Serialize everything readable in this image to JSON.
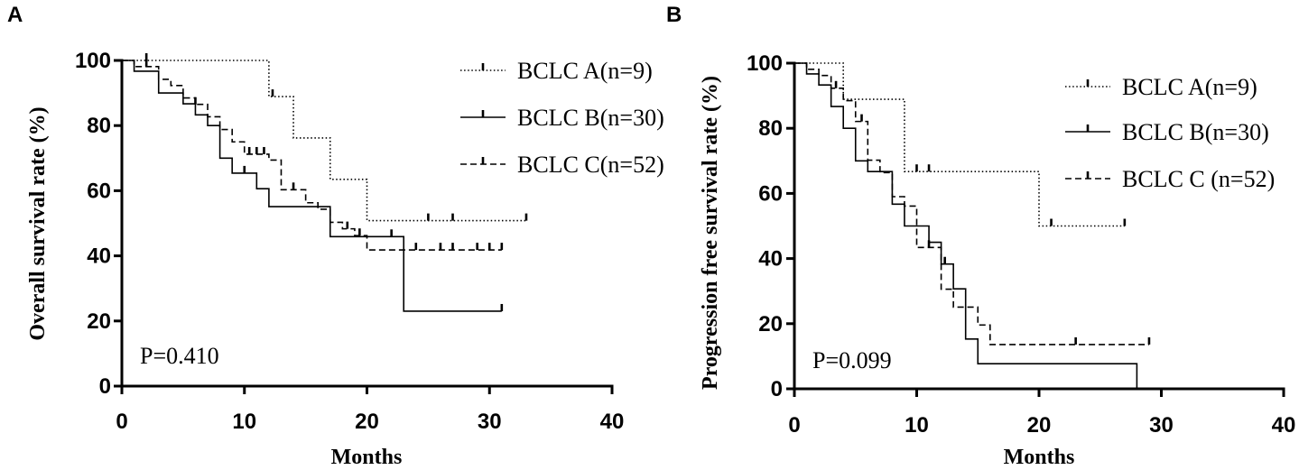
{
  "chart_data": [
    {
      "panel_label": "A",
      "type": "line",
      "xlabel": "Months",
      "ylabel": "Overall survival rate (%)",
      "xlim": [
        0,
        40
      ],
      "ylim": [
        0,
        100
      ],
      "x_ticks": [
        0,
        10,
        20,
        30,
        40
      ],
      "y_ticks": [
        0,
        20,
        40,
        60,
        80,
        100
      ],
      "grid": false,
      "legend_position": "top-right",
      "annotation": "P=0.410",
      "series": [
        {
          "name": "BCLC A(n=9)",
          "line_style": "dotted",
          "color": "#000000",
          "steps": [
            [
              0,
              100
            ],
            [
              12,
              88.9
            ],
            [
              14,
              76.2
            ],
            [
              17,
              63.5
            ],
            [
              20,
              50.8
            ]
          ],
          "end": 33,
          "censored_at": [
            2,
            12.3,
            25,
            27,
            33
          ]
        },
        {
          "name": "BCLC B(n=30)",
          "line_style": "solid",
          "color": "#000000",
          "steps": [
            [
              0,
              100
            ],
            [
              1,
              96.7
            ],
            [
              3,
              90
            ],
            [
              5,
              86.7
            ],
            [
              6,
              83.3
            ],
            [
              7,
              80
            ],
            [
              8,
              70
            ],
            [
              9,
              65.4
            ],
            [
              11,
              60.6
            ],
            [
              12,
              55.1
            ],
            [
              17,
              45.9
            ],
            [
              23,
              23
            ]
          ],
          "end": 31,
          "censored_at": [
            10,
            22,
            31
          ]
        },
        {
          "name": "BCLC C(n=52)",
          "line_style": "dashed",
          "color": "#000000",
          "steps": [
            [
              0,
              100
            ],
            [
              1,
              98.1
            ],
            [
              3,
              94.2
            ],
            [
              4,
              92.3
            ],
            [
              5,
              88.5
            ],
            [
              6,
              86.5
            ],
            [
              7,
              82.7
            ],
            [
              8,
              78.8
            ],
            [
              9,
              75
            ],
            [
              10,
              71.2
            ],
            [
              12,
              69.4
            ],
            [
              13,
              60.3
            ],
            [
              15,
              56.3
            ],
            [
              16,
              54.3
            ],
            [
              17,
              50.3
            ],
            [
              18,
              48.3
            ],
            [
              19,
              46.2
            ],
            [
              20,
              41.8
            ]
          ],
          "end": 31,
          "censored_at": [
            2,
            6,
            10.4,
            11,
            11.6,
            14,
            18.4,
            19.4,
            24,
            26,
            27,
            29,
            30,
            31
          ]
        }
      ]
    },
    {
      "panel_label": "B",
      "type": "line",
      "xlabel": "Months",
      "ylabel": "Progression free survival rate (%)",
      "xlim": [
        0,
        40
      ],
      "ylim": [
        0,
        100
      ],
      "x_ticks": [
        0,
        10,
        20,
        30,
        40
      ],
      "y_ticks": [
        0,
        20,
        40,
        60,
        80,
        100
      ],
      "grid": false,
      "legend_position": "top-right",
      "annotation": "P=0.099",
      "series": [
        {
          "name": "BCLC A(n=9)",
          "line_style": "dotted",
          "color": "#000000",
          "steps": [
            [
              0,
              100
            ],
            [
              4,
              88.9
            ],
            [
              9,
              66.7
            ],
            [
              20,
              50
            ]
          ],
          "end": 27,
          "censored_at": [
            10,
            11,
            21,
            27
          ]
        },
        {
          "name": "BCLC B(n=30)",
          "line_style": "solid",
          "color": "#000000",
          "steps": [
            [
              0,
              100
            ],
            [
              1,
              96.7
            ],
            [
              2,
              93.3
            ],
            [
              3,
              86.7
            ],
            [
              4,
              80
            ],
            [
              5,
              70
            ],
            [
              6,
              66.7
            ],
            [
              8,
              56.7
            ],
            [
              9,
              50
            ],
            [
              11,
              45
            ],
            [
              12,
              38.3
            ],
            [
              13,
              30.7
            ],
            [
              14,
              15.3
            ],
            [
              15,
              7.7
            ],
            [
              28,
              0
            ]
          ],
          "end": 28,
          "censored_at": [
            12.3
          ]
        },
        {
          "name": "BCLC C (n=52)",
          "line_style": "dashed",
          "color": "#000000",
          "steps": [
            [
              0,
              100
            ],
            [
              1,
              98.1
            ],
            [
              2,
              96.2
            ],
            [
              3,
              92.3
            ],
            [
              4,
              88.5
            ],
            [
              5,
              82.1
            ],
            [
              6,
              70.2
            ],
            [
              7,
              66.4
            ],
            [
              8,
              59
            ],
            [
              9,
              56.1
            ],
            [
              10,
              43.4
            ],
            [
              12,
              30.6
            ],
            [
              13,
              25.1
            ],
            [
              15,
              19.6
            ],
            [
              16,
              13.6
            ]
          ],
          "end": 29,
          "censored_at": [
            3.4,
            5.5,
            11,
            23,
            29
          ]
        }
      ]
    }
  ]
}
